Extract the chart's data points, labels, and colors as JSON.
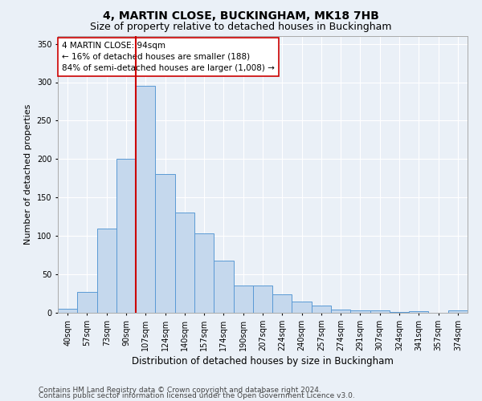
{
  "title1": "4, MARTIN CLOSE, BUCKINGHAM, MK18 7HB",
  "title2": "Size of property relative to detached houses in Buckingham",
  "xlabel": "Distribution of detached houses by size in Buckingham",
  "ylabel": "Number of detached properties",
  "categories": [
    "40sqm",
    "57sqm",
    "73sqm",
    "90sqm",
    "107sqm",
    "124sqm",
    "140sqm",
    "157sqm",
    "174sqm",
    "190sqm",
    "207sqm",
    "224sqm",
    "240sqm",
    "257sqm",
    "274sqm",
    "291sqm",
    "307sqm",
    "324sqm",
    "341sqm",
    "357sqm",
    "374sqm"
  ],
  "values": [
    5,
    27,
    110,
    200,
    295,
    181,
    130,
    103,
    68,
    35,
    35,
    24,
    15,
    9,
    4,
    3,
    3,
    1,
    2,
    0,
    3
  ],
  "bar_color": "#c5d8ed",
  "bar_edge_color": "#5a9ad5",
  "property_line_x": 3.5,
  "property_line_color": "#cc0000",
  "annotation_text": "4 MARTIN CLOSE: 94sqm\n← 16% of detached houses are smaller (188)\n84% of semi-detached houses are larger (1,008) →",
  "annotation_box_color": "#ffffff",
  "annotation_box_edge": "#cc0000",
  "ylim": [
    0,
    360
  ],
  "yticks": [
    0,
    50,
    100,
    150,
    200,
    250,
    300,
    350
  ],
  "footer1": "Contains HM Land Registry data © Crown copyright and database right 2024.",
  "footer2": "Contains public sector information licensed under the Open Government Licence v3.0.",
  "background_color": "#eaf0f7",
  "plot_bg_color": "#eaf0f7",
  "grid_color": "#ffffff",
  "title1_fontsize": 10,
  "title2_fontsize": 9,
  "xlabel_fontsize": 8.5,
  "ylabel_fontsize": 8,
  "tick_fontsize": 7,
  "footer_fontsize": 6.5,
  "annotation_fontsize": 7.5
}
